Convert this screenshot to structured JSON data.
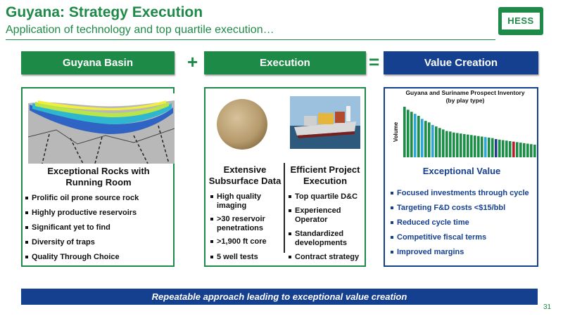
{
  "header": {
    "title": "Guyana: Strategy Execution",
    "subtitle": "Application of technology and top quartile execution…",
    "logo_text": "HESS"
  },
  "equation": {
    "left_label": "Guyana Basin",
    "middle_label": "Execution",
    "right_label": "Value Creation",
    "plus": "+",
    "equals": "="
  },
  "basin_panel": {
    "heading": "Exceptional Rocks with Running Room",
    "bullets": [
      "Prolific oil prone source rock",
      "Highly productive reservoirs",
      "Significant yet to find",
      "Diversity of traps",
      "Quality Through Choice"
    ]
  },
  "execution_panel": {
    "left_heading": "Extensive Subsurface Data",
    "left_bullets": [
      "High quality imaging",
      ">30 reservoir penetrations",
      " >1,900 ft core",
      "5 well tests"
    ],
    "right_heading": "Efficient Project Execution",
    "right_bullets": [
      "Top quartile D&C",
      "Experienced Operator",
      "Standardized developments",
      "Contract strategy"
    ]
  },
  "value_panel": {
    "heading": "Exceptional Value",
    "bullets": [
      "Focused investments through cycle",
      "Targeting F&D costs <$15/bbl",
      "Reduced cycle time",
      "Competitive fiscal terms",
      "Improved margins"
    ]
  },
  "chart_data": {
    "type": "bar",
    "title": "Guyana and Suriname Prospect Inventory",
    "subtitle": "(by play type)",
    "ylabel": "Volume",
    "xlabel": "",
    "values": [
      100,
      94,
      90,
      86,
      82,
      76,
      72,
      69,
      64,
      61,
      58,
      55,
      52,
      51,
      49,
      48,
      47,
      46,
      45,
      44,
      43,
      42,
      41,
      40,
      39,
      38,
      36,
      35,
      34,
      33,
      32,
      31,
      30,
      29,
      28,
      27,
      26,
      25
    ],
    "colors": [
      "#1a8f46",
      "#1a8f46",
      "#1a8f46",
      "#2ea7d8",
      "#1a8f46",
      "#2ea7d8",
      "#1a8f46",
      "#1a8f46",
      "#2ea7d8",
      "#1a8f46",
      "#1a8f46",
      "#1a8f46",
      "#1a8f46",
      "#1a8f46",
      "#1a8f46",
      "#1a8f46",
      "#1a8f46",
      "#1a8f46",
      "#1a8f46",
      "#1a8f46",
      "#1a8f46",
      "#1a8f46",
      "#1a8f46",
      "#2ea7d8",
      "#1a8f46",
      "#1a8f46",
      "#1f3f8f",
      "#1a8f46",
      "#1a8f46",
      "#1a8f46",
      "#1a8f46",
      "#b5202e",
      "#1a8f46",
      "#1a8f46",
      "#1a8f46",
      "#1a8f46",
      "#1a8f46",
      "#1a8f46"
    ]
  },
  "footer": {
    "banner": "Repeatable approach leading to exceptional value creation",
    "page_number": "31"
  },
  "colors": {
    "green": "#1e8a47",
    "blue": "#153f8f"
  }
}
